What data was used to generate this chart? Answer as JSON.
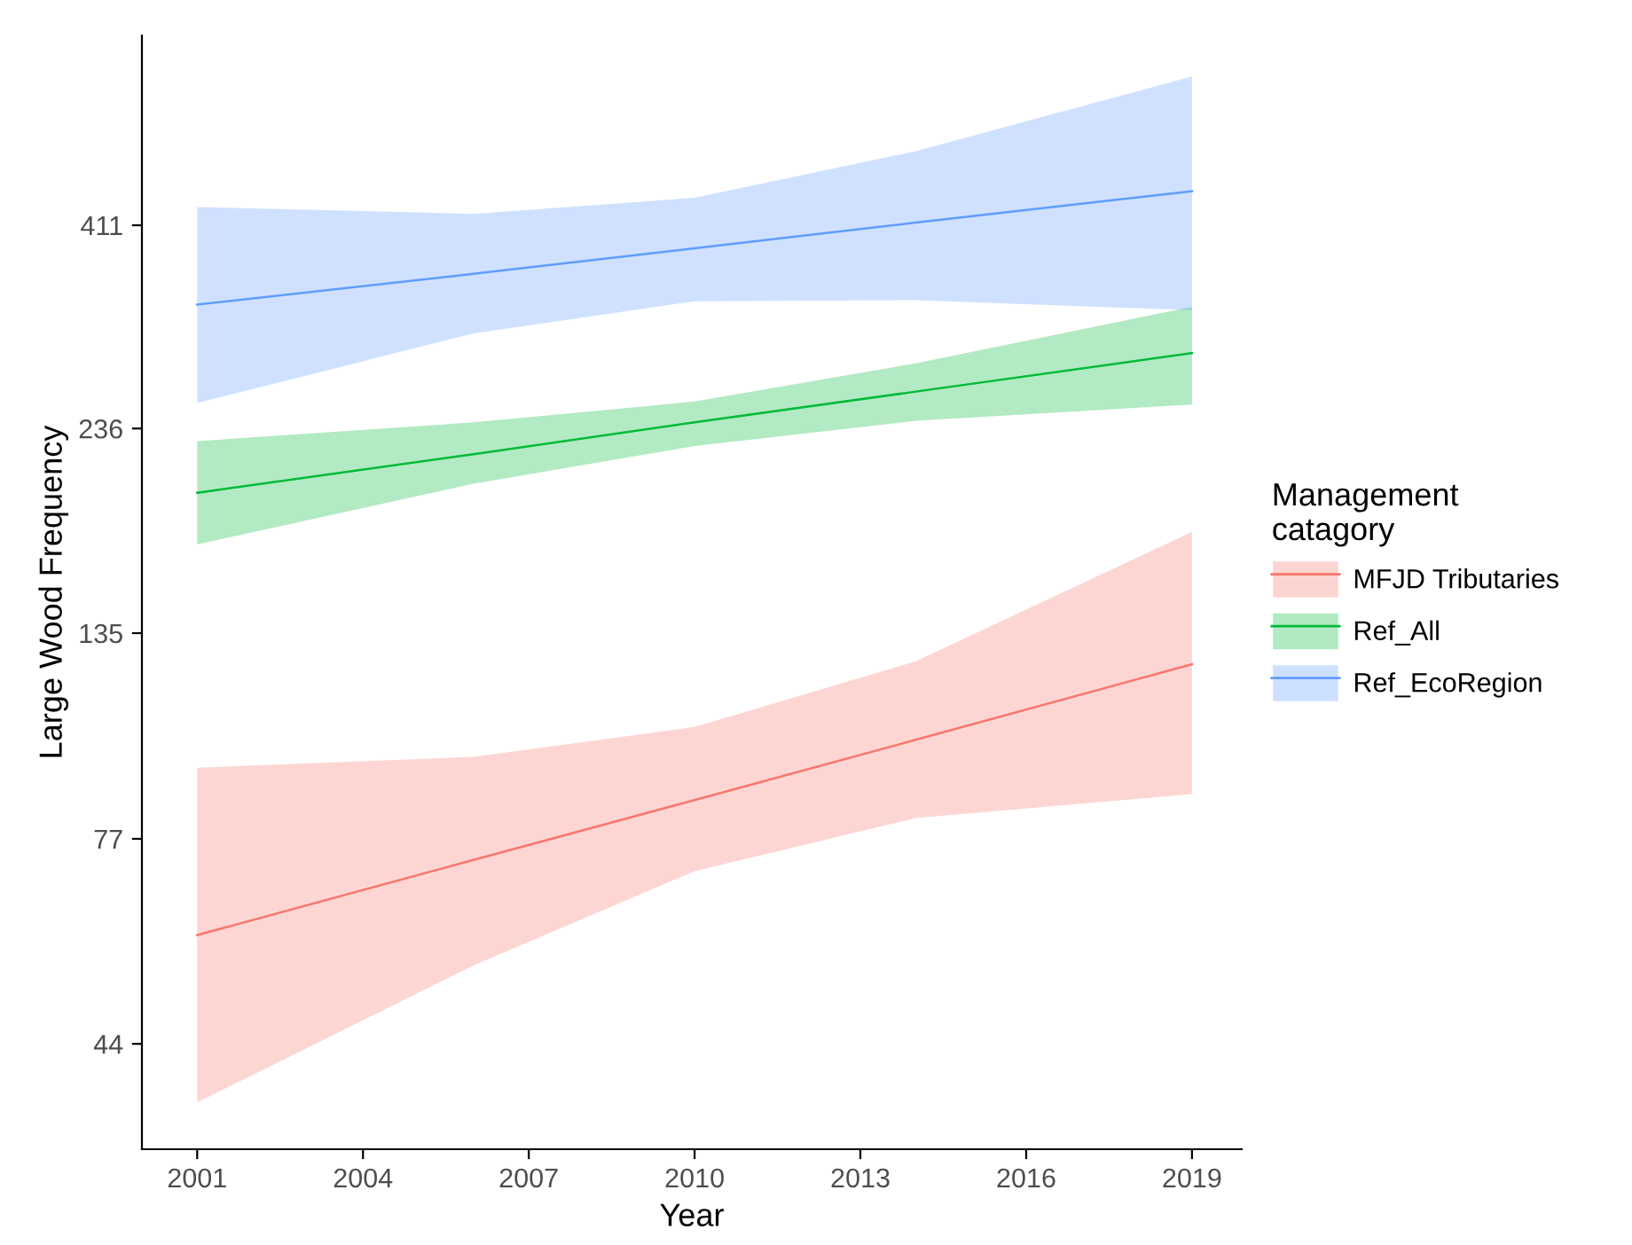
{
  "chart_data": {
    "type": "line",
    "xlabel": "Year",
    "ylabel": "Large Wood Frequency",
    "legend_title": "Management\ncatagory",
    "legend": "right",
    "grid": false,
    "log": "y",
    "xlim": [
      2000.0,
      2019.9
    ],
    "xticks": [
      2001,
      2004,
      2007,
      2010,
      2013,
      2016,
      2019
    ],
    "ylim": [
      33,
      690
    ],
    "yticks": [
      44,
      77,
      135,
      236,
      411
    ],
    "series": [
      {
        "name": "MFJD Tributaries",
        "color": "#f8766d",
        "x": [
          2001,
          2006,
          2010,
          2014,
          2019
        ],
        "values": [
          59.2,
          72.7,
          85.6,
          100.9,
          124
        ],
        "lower": [
          37.5,
          54.5,
          70.5,
          81.5,
          87
        ],
        "upper": [
          93.5,
          96.3,
          104.5,
          125,
          178
        ]
      },
      {
        "name": "Ref_All",
        "color": "#00ba38",
        "x": [
          2001,
          2006,
          2010,
          2014,
          2019
        ],
        "values": [
          198,
          220,
          240,
          261,
          290
        ],
        "lower": [
          172,
          203,
          225,
          241,
          252
        ],
        "upper": [
          228,
          240,
          254,
          282,
          329
        ]
      },
      {
        "name": "Ref_EcoRegion",
        "color": "#619cff",
        "x": [
          2001,
          2006,
          2010,
          2014,
          2019
        ],
        "values": [
          331,
          360,
          386,
          414,
          451
        ],
        "lower": [
          253,
          306,
          334,
          335,
          326
        ],
        "upper": [
          432,
          424,
          443,
          503,
          617
        ]
      }
    ]
  }
}
